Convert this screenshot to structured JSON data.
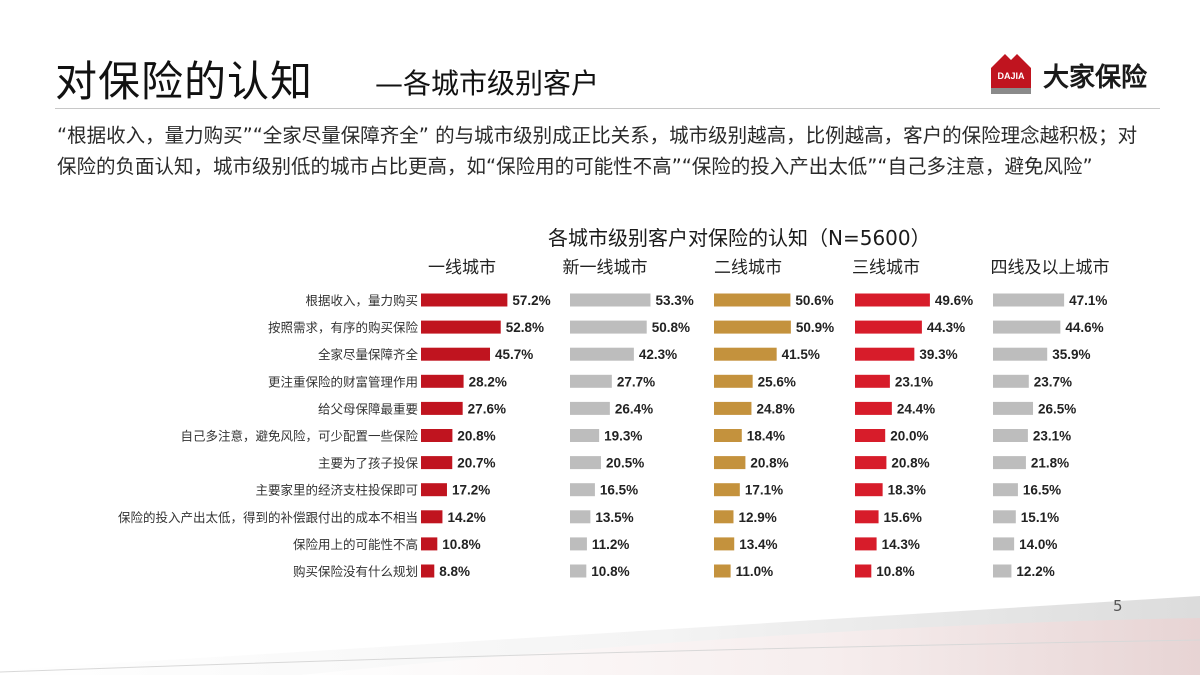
{
  "title": {
    "main": "对保险的认知",
    "sub": "—各城市级别客户"
  },
  "logo": {
    "mark_text": "DAJIA",
    "text": "大家保险"
  },
  "body_text": "“根据收入，量力购买”“全家尽量保障齐全” 的与城市级别成正比关系，城市级别越高，比例越高，客户的保险理念越积极；对保险的负面认知，城市级别低的城市占比更高，如“保险用的可能性不高”“保险的投入产出太低”“自己多注意，避免风险”",
  "page_number": "5",
  "chart_data": {
    "type": "bar",
    "title": "各城市级别客户对保险的认知（N=5600）",
    "orientation": "horizontal",
    "categories": [
      "根据收入，量力购买",
      "按照需求，有序的购买保险",
      "全家尽量保障齐全",
      "更注重保险的财富管理作用",
      "给父母保障最重要",
      "自己多注意，避免风险，可少配置一些保险",
      "主要为了孩子投保",
      "主要家里的经济支柱投保即可",
      "保险的投入产出太低，得到的补偿跟付出的成本不相当",
      "保险用上的可能性不高",
      "购买保险没有什么规划"
    ],
    "series": [
      {
        "name": "一线城市",
        "color": "#c0141f",
        "values": [
          57.2,
          52.8,
          45.7,
          28.2,
          27.6,
          20.8,
          20.7,
          17.2,
          14.2,
          10.8,
          8.8
        ]
      },
      {
        "name": "新一线城市",
        "color": "#bdbdbd",
        "values": [
          53.3,
          50.8,
          42.3,
          27.7,
          26.4,
          19.3,
          20.5,
          16.5,
          13.5,
          11.2,
          10.8
        ]
      },
      {
        "name": "二线城市",
        "color": "#c4923d",
        "values": [
          50.6,
          50.9,
          41.5,
          25.6,
          24.8,
          18.4,
          20.8,
          17.1,
          12.9,
          13.4,
          11.0
        ]
      },
      {
        "name": "三线城市",
        "color": "#d71c2a",
        "values": [
          49.6,
          44.3,
          39.3,
          23.1,
          24.4,
          20.0,
          20.8,
          18.3,
          15.6,
          14.3,
          10.8
        ]
      },
      {
        "name": "四线及以上城市",
        "color": "#bdbdbd",
        "values": [
          47.1,
          44.6,
          35.9,
          23.7,
          26.5,
          23.1,
          21.8,
          16.5,
          15.1,
          14.0,
          12.2
        ]
      }
    ],
    "value_suffix": "%",
    "grid": false,
    "legend": "none"
  }
}
